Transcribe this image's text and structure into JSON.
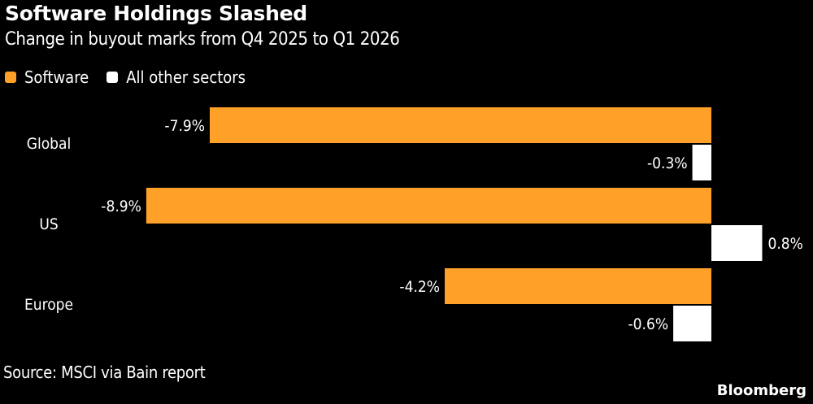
{
  "title": "Software Holdings Slashed",
  "subtitle": "Change in buyout marks from Q4 2025 to Q1 2026",
  "source": "Source: MSCI via Bain report",
  "brand": "Bloomberg",
  "colors": {
    "software": "#FFA028",
    "other": "#FFFFFF",
    "background": "#000000"
  },
  "chart_data": {
    "type": "bar",
    "orientation": "horizontal",
    "categories": [
      "Global",
      "US",
      "Europe"
    ],
    "series": [
      {
        "name": "Software",
        "values": [
          -7.9,
          -8.9,
          -4.2
        ],
        "labels": [
          "-7.9%",
          "-8.9%",
          "-4.2%"
        ]
      },
      {
        "name": "All other sectors",
        "values": [
          -0.3,
          0.8,
          -0.6
        ],
        "labels": [
          "-0.3%",
          "0.8%",
          "-0.6%"
        ]
      }
    ],
    "xlim": [
      -8.9,
      0.8
    ],
    "grid": false,
    "legend": "top-left"
  }
}
